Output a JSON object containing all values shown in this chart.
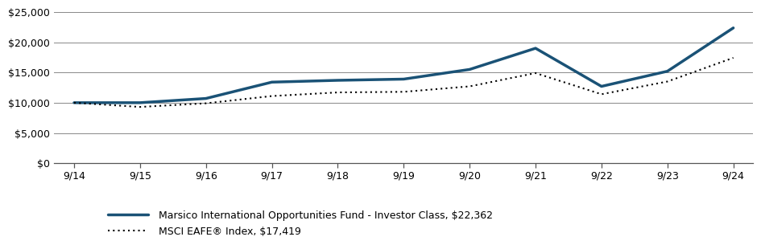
{
  "x_labels": [
    "9/14",
    "9/15",
    "9/16",
    "9/17",
    "9/18",
    "9/19",
    "9/20",
    "9/21",
    "9/22",
    "9/23",
    "9/24"
  ],
  "fund_values": [
    10000,
    10000,
    10700,
    13400,
    13700,
    13900,
    15500,
    19000,
    12700,
    15200,
    22362
  ],
  "index_values": [
    10000,
    9300,
    9900,
    11100,
    11700,
    11800,
    12700,
    14900,
    11400,
    13500,
    17419
  ],
  "fund_color": "#1a5276",
  "index_color": "#000000",
  "fund_label": "Marsico International Opportunities Fund - Investor Class, $22,362",
  "index_label": "MSCI EAFE® Index, $17,419",
  "ylim": [
    0,
    25000
  ],
  "yticks": [
    0,
    5000,
    10000,
    15000,
    20000,
    25000
  ],
  "ytick_labels": [
    "$0",
    "$5,000",
    "$10,000",
    "$15,000",
    "$20,000",
    "$25,000"
  ],
  "grid_color": "#888888",
  "background_color": "#ffffff",
  "fund_linewidth": 2.5,
  "index_linewidth": 1.5,
  "tick_fontsize": 9,
  "legend_fontsize": 9
}
